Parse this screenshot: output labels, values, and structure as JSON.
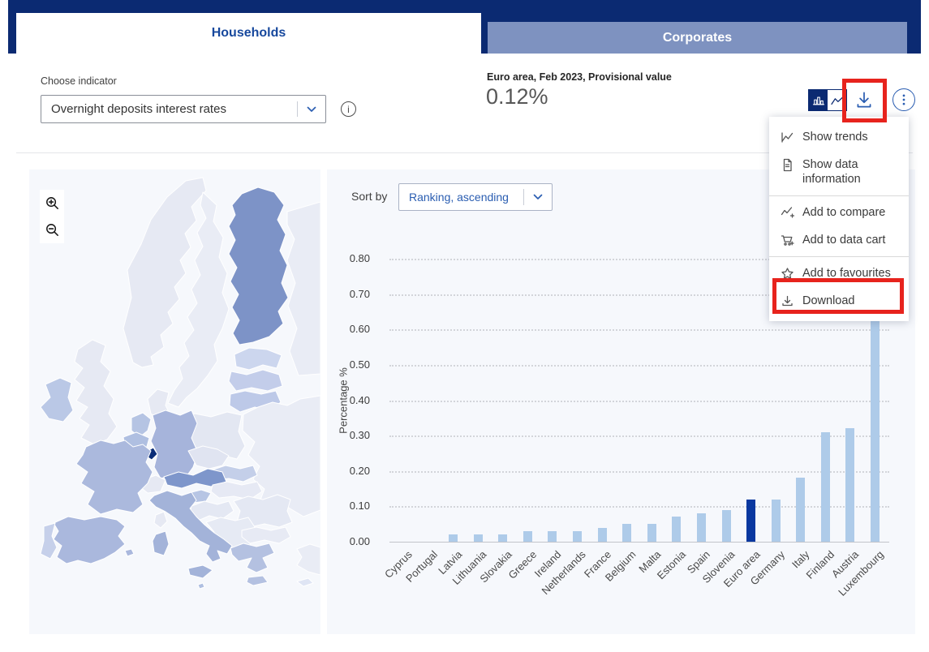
{
  "colors": {
    "navy": "#0b2a72",
    "tab-text": "#17489d",
    "tab-inactive-bg": "#7e92c0",
    "accent": "#2a5db1",
    "red": "#e7231d",
    "panel": "#f6f8fc",
    "bar": "#aecbe9",
    "bar-hl": "#0a38a0",
    "ink": "#333333",
    "muted": "#575757"
  },
  "tabs": [
    {
      "label": "Households",
      "active": true
    },
    {
      "label": "Corporates",
      "active": false
    }
  ],
  "indicator": {
    "label": "Choose indicator",
    "value": "Overnight deposits interest rates",
    "info_icon": "info-circle-icon"
  },
  "header": {
    "context": "Euro area, Feb 2023, Provisional value",
    "value": "0.12%"
  },
  "toolbar": {
    "view_toggle": {
      "options": [
        "bar-chart-icon",
        "line-chart-icon"
      ],
      "selected": "bar-chart-icon"
    },
    "download_icon": "download-icon",
    "more_icon": "kebab-menu-icon"
  },
  "menu": {
    "items": [
      {
        "icon": "line-chart",
        "label": "Show trends"
      },
      {
        "icon": "document",
        "label": "Show data information",
        "divider_after": true
      },
      {
        "icon": "chart-plus",
        "label": "Add to compare"
      },
      {
        "icon": "cart-plus",
        "label": "Add to data cart",
        "divider_after": true
      },
      {
        "icon": "star",
        "label": "Add to favourites"
      },
      {
        "icon": "download",
        "label": "Download",
        "highlighted": true
      }
    ]
  },
  "sort": {
    "label": "Sort by",
    "value": "Ranking, ascending"
  },
  "chart_data": {
    "type": "bar",
    "ylabel": "Percentage %",
    "ylim": [
      0,
      0.8
    ],
    "ytick_step": 0.1,
    "grid": "horizontal-dotted",
    "categories": [
      "Cyprus",
      "Portugal",
      "Latvia",
      "Lithuania",
      "Slovakia",
      "Greece",
      "Ireland",
      "Netherlands",
      "France",
      "Belgium",
      "Malta",
      "Estonia",
      "Spain",
      "Slovenia",
      "Euro area",
      "Germany",
      "Italy",
      "Finland",
      "Austria",
      "Luxembourg"
    ],
    "values": [
      0.0,
      0.0,
      0.02,
      0.02,
      0.02,
      0.03,
      0.03,
      0.03,
      0.04,
      0.05,
      0.05,
      0.07,
      0.08,
      0.09,
      0.12,
      0.12,
      0.18,
      0.31,
      0.32,
      0.63
    ],
    "highlight_category": "Euro area",
    "bar_color": "#aecbe9",
    "highlight_color": "#0a38a0",
    "unit": "%"
  },
  "map": {
    "zoom_controls": [
      "zoom-in-icon",
      "zoom-out-icon"
    ],
    "country_colors": {
      "norway": "#e6e9f3",
      "sweden": "#e9ecf5",
      "finland": "#7d93c7",
      "russia": "#e9ecf5",
      "denmark": "#e6e9f3",
      "estonia": "#ccd6ee",
      "latvia": "#c3cdea",
      "lithuania": "#bdc9e8",
      "poland": "#e3e7f2",
      "east-europe": "#e9ecf5",
      "uk": "#e6e9f3",
      "ireland": "#bac8e6",
      "netherlands": "#b5c4e3",
      "belgium": "#afbfe1",
      "luxembourg": "#0b2d78",
      "germany": "#a6b4db",
      "france": "#abb9dd",
      "switzerland": "#e6e9f3",
      "austria": "#7e96cb",
      "czechia": "#e0e4f1",
      "slovakia": "#c4cfe9",
      "hungary": "#e6e9f4",
      "slovenia": "#b7c5e4",
      "croatia": "#e4e8f3",
      "balkans": "#e6eaf4",
      "romania": "#e4e8f3",
      "bulgaria": "#e7eaf4",
      "greece": "#b4c1e1",
      "italy": "#a3b3d9",
      "corsica": "#e6e9f3",
      "spain": "#aab8dd",
      "portugal": "#c6d0ea",
      "turkey": "#e9ecf5",
      "cyprus": "#dfe5f4",
      "malta": "#afbfe1"
    }
  }
}
